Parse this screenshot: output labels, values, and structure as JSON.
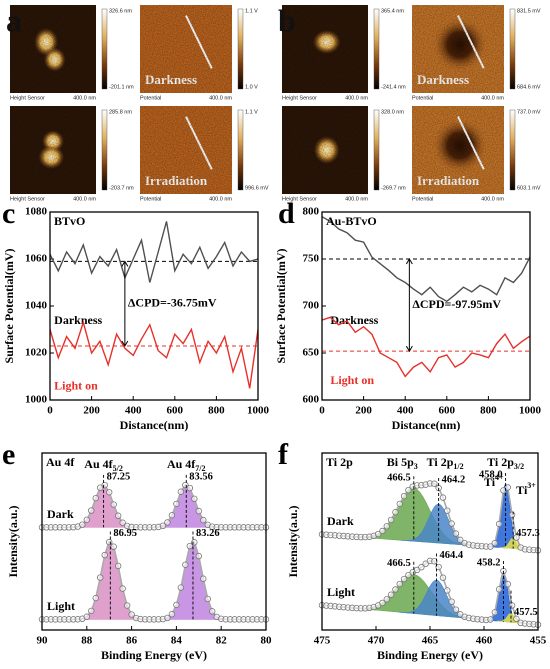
{
  "afm": [
    {
      "label": "a",
      "tiles": [
        {
          "kind": "height",
          "max": "326.6 nm",
          "min": "-201.1 nm",
          "caption": "Height Sensor",
          "scale": "400.0 nm"
        },
        {
          "kind": "potential",
          "max": "1.1 V",
          "min": "1.0 V",
          "caption": "Potential",
          "scale": "400.0 nm",
          "condition": "Darkness"
        },
        {
          "kind": "height",
          "max": "285.8 nm",
          "min": "-203.7 nm",
          "caption": "Height Sensor",
          "scale": "400.0 nm"
        },
        {
          "kind": "potential",
          "max": "1.1 V",
          "min": "996.6 mV",
          "caption": "Potential",
          "scale": "400.0 nm",
          "condition": "Irradiation"
        }
      ]
    },
    {
      "label": "b",
      "tiles": [
        {
          "kind": "height",
          "max": "365.4 nm",
          "min": "-241.4 nm",
          "caption": "Height Sensor",
          "scale": "400.0 nm"
        },
        {
          "kind": "potential",
          "max": "831.5 mV",
          "min": "684.6 mV",
          "caption": "Potential",
          "scale": "400.0 nm",
          "condition": "Darkness"
        },
        {
          "kind": "height",
          "max": "328.0 nm",
          "min": "-269.7 nm",
          "caption": "Height Sensor",
          "scale": "400.0 nm"
        },
        {
          "kind": "potential",
          "max": "737.0 mV",
          "min": "603.1 mV",
          "caption": "Potential",
          "scale": "400.0 nm",
          "condition": "Irradiation"
        }
      ]
    }
  ],
  "chart_data": [
    {
      "type": "line",
      "label": "c",
      "title": "BTvO",
      "x": [
        0,
        40,
        80,
        120,
        160,
        200,
        240,
        280,
        320,
        360,
        400,
        440,
        480,
        520,
        560,
        600,
        640,
        680,
        720,
        760,
        800,
        840,
        880,
        920,
        960,
        1000
      ],
      "series": [
        {
          "name": "Darkness",
          "color": "#505050",
          "values": [
            1062,
            1055,
            1063,
            1058,
            1066,
            1054,
            1061,
            1057,
            1064,
            1052,
            1060,
            1068,
            1050,
            1063,
            1076,
            1055,
            1062,
            1058,
            1065,
            1056,
            1061,
            1067,
            1057,
            1063,
            1059,
            1060
          ]
        },
        {
          "name": "Light on",
          "color": "#e8302a",
          "values": [
            1030,
            1018,
            1027,
            1022,
            1033,
            1020,
            1025,
            1015,
            1028,
            1022,
            1019,
            1026,
            1032,
            1021,
            1018,
            1028,
            1024,
            1030,
            1016,
            1025,
            1020,
            1027,
            1012,
            1022,
            1005,
            1030
          ]
        }
      ],
      "reference_lines": [
        {
          "value": 1059,
          "color": "#000000"
        },
        {
          "value": 1023,
          "color": "#e8302a"
        }
      ],
      "annotation": "ΔCPD=-36.75mV",
      "xlim": [
        0,
        1000
      ],
      "xticks": [
        0,
        200,
        400,
        600,
        800,
        1000
      ],
      "ylim": [
        1000,
        1080
      ],
      "yticks": [
        1000,
        1020,
        1040,
        1060,
        1080
      ],
      "xlabel": "Distance(nm)",
      "ylabel": "Surface Potential(mV)"
    },
    {
      "type": "line",
      "label": "d",
      "title": "Au-BTvO",
      "x": [
        0,
        40,
        80,
        120,
        160,
        200,
        240,
        280,
        320,
        360,
        400,
        440,
        480,
        520,
        560,
        600,
        640,
        680,
        720,
        760,
        800,
        840,
        880,
        920,
        960,
        1000
      ],
      "series": [
        {
          "name": "Darkness",
          "color": "#505050",
          "values": [
            795,
            790,
            782,
            778,
            770,
            768,
            752,
            745,
            738,
            730,
            725,
            718,
            712,
            720,
            710,
            705,
            712,
            720,
            715,
            722,
            718,
            712,
            730,
            725,
            735,
            752
          ]
        },
        {
          "name": "Light on",
          "color": "#e8302a",
          "values": [
            685,
            688,
            680,
            684,
            672,
            678,
            670,
            650,
            645,
            640,
            625,
            635,
            640,
            630,
            645,
            648,
            635,
            640,
            650,
            648,
            645,
            660,
            670,
            655,
            662,
            668
          ]
        }
      ],
      "reference_lines": [
        {
          "value": 750,
          "color": "#000000"
        },
        {
          "value": 652,
          "color": "#e8302a"
        }
      ],
      "annotation": "ΔCPD=-97.95mV",
      "xlim": [
        0,
        1000
      ],
      "xticks": [
        0,
        200,
        400,
        600,
        800,
        1000
      ],
      "ylim": [
        600,
        800
      ],
      "yticks": [
        600,
        650,
        700,
        750,
        800
      ],
      "xlabel": "Distance(nm)",
      "ylabel": "Surface Potential(mV)"
    },
    {
      "type": "xps",
      "label": "e",
      "title": "Au 4f",
      "xlim": [
        90,
        80
      ],
      "xticks": [
        90,
        88,
        86,
        84,
        82,
        80
      ],
      "ylim": [
        0,
        100
      ],
      "xlabel": "Binding Energy (eV)",
      "ylabel": "Intensity(a.u.)",
      "peak_names": [
        {
          "name": "Au 4f",
          "sub": "5/2"
        },
        {
          "name": "Au 4f",
          "sub": "7/2"
        }
      ],
      "spectra": [
        {
          "name": "Dark",
          "baseline": [
            58,
            58
          ],
          "peaks": [
            {
              "center": 87.25,
              "height": 24,
              "width": 0.95,
              "color": "#d98fc6"
            },
            {
              "center": 83.56,
              "height": 24,
              "width": 0.95,
              "color": "#c084e0"
            }
          ],
          "value_labels": [
            "87.25",
            "83.56"
          ]
        },
        {
          "name": "Light",
          "baseline": [
            6,
            6
          ],
          "peaks": [
            {
              "center": 86.95,
              "height": 44,
              "width": 0.95,
              "color": "#d98fc6"
            },
            {
              "center": 83.26,
              "height": 44,
              "width": 0.95,
              "color": "#c084e0"
            }
          ],
          "value_labels": [
            "86.95",
            "83.26"
          ]
        }
      ]
    },
    {
      "type": "xps",
      "label": "f",
      "title": "Ti 2p",
      "xlim": [
        475,
        455
      ],
      "xticks": [
        475,
        470,
        465,
        460,
        455
      ],
      "ylim": [
        0,
        100
      ],
      "xlabel": "Binding Energy (eV)",
      "ylabel": "Intensity(a.u.)",
      "peak_names": [
        {
          "name": "Bi 5p",
          "sub": "3"
        },
        {
          "name": "Ti 2p",
          "sub": "1/2"
        },
        {
          "name": "Ti 2p",
          "sub": "3/2"
        },
        {
          "name": "Ti",
          "sup": "4+"
        },
        {
          "name": "Ti",
          "sup": "3+"
        }
      ],
      "spectra": [
        {
          "name": "Dark",
          "baseline": [
            54,
            45
          ],
          "peaks": [
            {
              "center": 466.5,
              "height": 30,
              "width": 3.5,
              "color": "#6aa84f"
            },
            {
              "center": 464.2,
              "height": 22,
              "width": 2.2,
              "color": "#4a86c8"
            },
            {
              "center": 458.0,
              "height": 36,
              "width": 1.0,
              "color": "#1f5fd6"
            },
            {
              "center": 457.3,
              "height": 6,
              "width": 0.8,
              "color": "#e8e04a"
            }
          ],
          "value_labels": [
            "466.5",
            "464.2",
            "458.0",
            "457.3"
          ]
        },
        {
          "name": "Light",
          "baseline": [
            14,
            3
          ],
          "peaks": [
            {
              "center": 466.5,
              "height": 22,
              "width": 3.8,
              "color": "#6aa84f"
            },
            {
              "center": 464.4,
              "height": 20,
              "width": 2.2,
              "color": "#4a86c8"
            },
            {
              "center": 458.2,
              "height": 28,
              "width": 1.0,
              "color": "#1f5fd6"
            },
            {
              "center": 457.5,
              "height": 5,
              "width": 0.8,
              "color": "#e8e04a"
            }
          ],
          "value_labels": [
            "466.5",
            "464.4",
            "458.2",
            "457.5"
          ]
        }
      ]
    }
  ]
}
